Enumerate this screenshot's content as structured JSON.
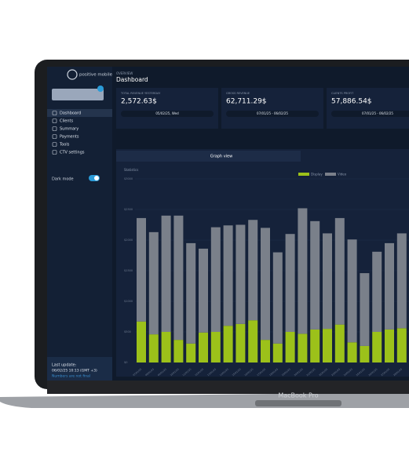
{
  "logo": "positive mobile",
  "sidebar": {
    "items": [
      "Dashboard",
      "Clients",
      "Summary",
      "Payments",
      "Tools",
      "CTV settings"
    ],
    "dark_mode": "Dark mode",
    "last_update": "Last update:",
    "last_update_time": "06/02/25 10:13 (GMT +3)",
    "note": "Numbers are not final"
  },
  "header": {
    "overline": "OVERVIEW",
    "title": "Dashboard"
  },
  "cards": [
    {
      "label": "TOTAL REVENUE YESTERDAY",
      "value": "2,572.63$",
      "period": "05/02/25, Wed"
    },
    {
      "label": "GROSS REVENUE",
      "value": "62,711.29$",
      "period": "07/01/25 - 06/02/25"
    },
    {
      "label": "CLIENTS PROFIT",
      "value": "57,886.54$",
      "period": "07/01/25 - 06/02/25"
    }
  ],
  "tab": "Graph view",
  "device": "MacBook Pro",
  "chart_data": {
    "type": "stacked_bar",
    "title": "Statistics",
    "categories": [
      "07/01/25",
      "08/01/25",
      "09/01/25",
      "10/01/25",
      "11/01/25",
      "12/01/25",
      "13/01/25",
      "14/01/25",
      "15/01/25",
      "16/01/25",
      "17/01/25",
      "18/01/25",
      "19/01/25",
      "20/01/25",
      "21/01/25",
      "22/01/25",
      "23/01/25",
      "24/01/25",
      "25/01/25",
      "26/01/25",
      "27/01/25",
      "28/01/25"
    ],
    "series": [
      {
        "name": "Display",
        "color": "#9cc11a",
        "values": [
          670,
          460,
          500,
          370,
          310,
          490,
          500,
          600,
          630,
          690,
          370,
          310,
          500,
          470,
          540,
          550,
          620,
          330,
          270,
          500,
          540,
          560
        ]
      },
      {
        "name": "Video",
        "color": "#7a808a",
        "values": [
          1690,
          1670,
          1900,
          2030,
          1640,
          1370,
          1710,
          1640,
          1620,
          1640,
          1830,
          1490,
          1600,
          2050,
          1770,
          1560,
          1740,
          1680,
          1190,
          1310,
          1410,
          1550
        ]
      }
    ],
    "ylim": [
      0,
      3000
    ],
    "yticks": [
      {
        "value": 0,
        "label": "$0"
      },
      {
        "value": 500,
        "label": "$500"
      },
      {
        "value": 1000,
        "label": "$1000"
      },
      {
        "value": 1500,
        "label": "$1500"
      },
      {
        "value": 2000,
        "label": "$2000"
      },
      {
        "value": 2500,
        "label": "$2500"
      },
      {
        "value": 3000,
        "label": "$3000"
      }
    ]
  }
}
